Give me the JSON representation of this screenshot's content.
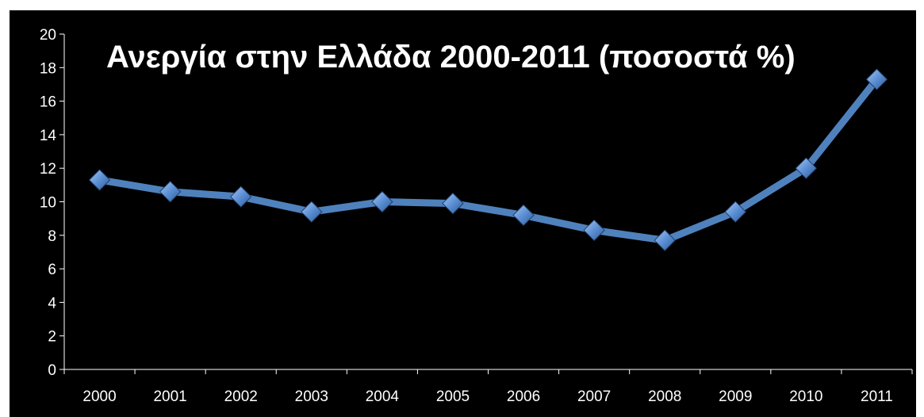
{
  "chart_data": {
    "type": "line",
    "title": "Ανεργία στην Ελλάδα 2000-2011 (ποσοστά %)",
    "xlabel": "",
    "ylabel": "",
    "categories": [
      "2000",
      "2001",
      "2002",
      "2003",
      "2004",
      "2005",
      "2006",
      "2007",
      "2008",
      "2009",
      "2010",
      "2011"
    ],
    "series": [
      {
        "values": [
          11.3,
          10.6,
          10.3,
          9.4,
          10.0,
          9.9,
          9.2,
          8.3,
          7.7,
          9.4,
          12.0,
          17.3
        ]
      }
    ],
    "ylim": [
      0,
      20
    ],
    "yticks": [
      "0",
      "2",
      "4",
      "6",
      "8",
      "10",
      "12",
      "14",
      "16",
      "18",
      "20"
    ],
    "grid": false,
    "legend": "none",
    "colors": {
      "background": "#000000",
      "line": "#4f81bd",
      "marker": "#6ea0e0",
      "text": "#ffffff",
      "axis": "#ffffff"
    }
  }
}
